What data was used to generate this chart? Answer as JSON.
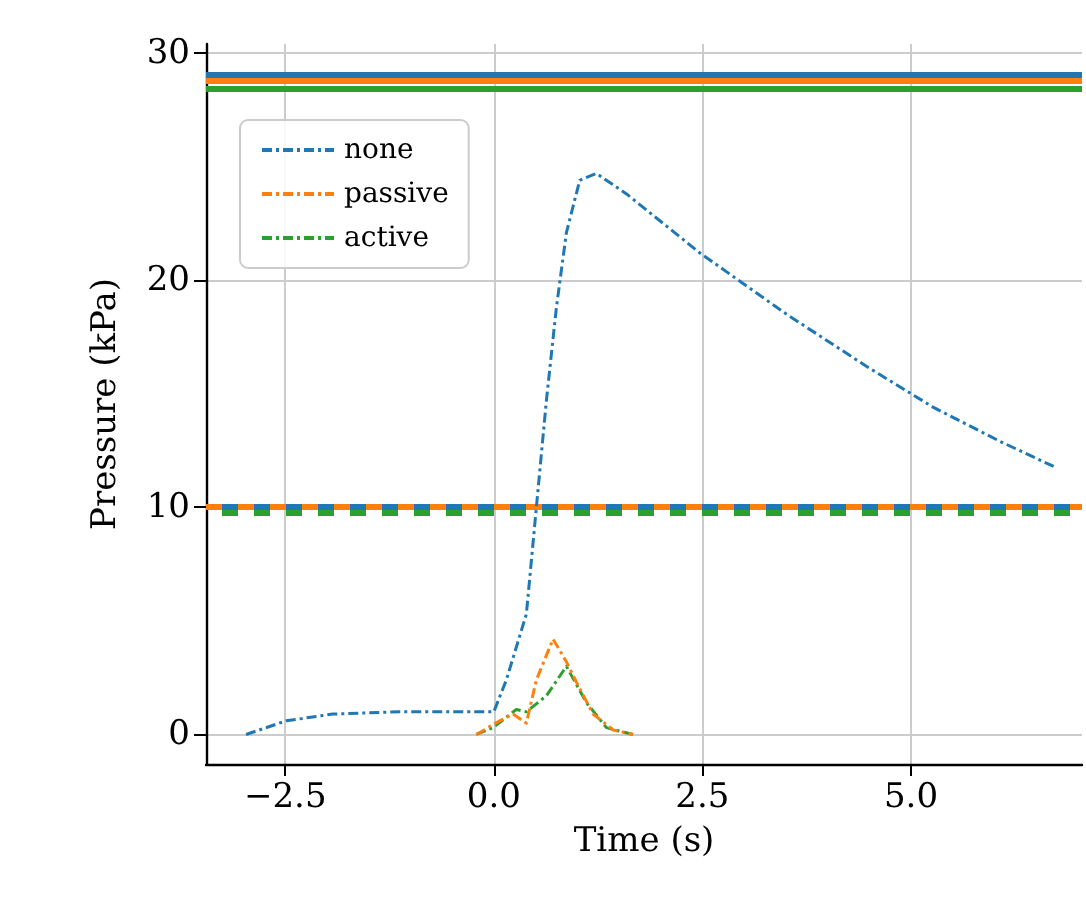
{
  "chart_data": {
    "type": "line",
    "xlabel": "Time (s)",
    "ylabel": "Pressure (kPa)",
    "xlim": [
      -3.45,
      7.05
    ],
    "ylim": [
      -1.3,
      30.4
    ],
    "xticks": [
      {
        "value": -2.5,
        "label": "−2.5"
      },
      {
        "value": 0,
        "label": "0.0"
      },
      {
        "value": 2.5,
        "label": "2.5"
      },
      {
        "value": 5,
        "label": "5.0"
      }
    ],
    "yticks": [
      0,
      10,
      20,
      30
    ],
    "grid": true,
    "legend": "top left",
    "line_style": "dashdot",
    "marker": "none",
    "series": [
      {
        "name": "none",
        "color": "#1f77b4",
        "x": [
          -2.97,
          -2.49,
          -1.93,
          -1.13,
          -0.09,
          0.0,
          0.15,
          0.39,
          0.51,
          0.63,
          0.75,
          0.87,
          1.03,
          1.23,
          1.59,
          2.47,
          3.51,
          4.47,
          5.27,
          6.07,
          6.71
        ],
        "values": [
          0,
          0.6,
          0.9,
          1.0,
          1.0,
          1.0,
          2.4,
          5.3,
          10.0,
          14.7,
          18.8,
          22.1,
          24.4,
          24.7,
          23.8,
          21.2,
          18.5,
          16.2,
          14.4,
          12.9,
          11.8
        ]
      },
      {
        "name": "passive",
        "color": "#ff7f0e",
        "x": [
          -0.21,
          0.07,
          0.23,
          0.39,
          0.51,
          0.71,
          0.87,
          0.99,
          1.19,
          1.43,
          1.67
        ],
        "values": [
          0,
          0.6,
          0.9,
          0.5,
          2.4,
          4.2,
          3.2,
          2.3,
          0.9,
          0.2,
          0
        ]
      },
      {
        "name": "active",
        "color": "#2ca02c",
        "x": [
          -0.21,
          -0.01,
          0.27,
          0.39,
          0.63,
          0.87,
          1.11,
          1.35,
          1.67
        ],
        "values": [
          0,
          0.3,
          1.1,
          1.0,
          1.7,
          3.0,
          1.4,
          0.3,
          0
        ]
      }
    ],
    "ref_lines": [
      {
        "axis": "y",
        "value": 29.1,
        "color": "#1f77b4",
        "line_style": "solid"
      },
      {
        "axis": "y",
        "value": 28.8,
        "color": "#ff7f0e",
        "line_style": "solid"
      },
      {
        "axis": "y",
        "value": 28.4,
        "color": "#2ca02c",
        "line_style": "solid"
      },
      {
        "axis": "y",
        "value": 10.0,
        "color": "#1f77b4",
        "line_style": "dashed"
      },
      {
        "axis": "y",
        "value": 10.0,
        "color": "#ff7f0e",
        "line_style": "dashed"
      },
      {
        "axis": "y",
        "value": 9.8,
        "color": "#2ca02c",
        "line_style": "dashed"
      }
    ]
  }
}
